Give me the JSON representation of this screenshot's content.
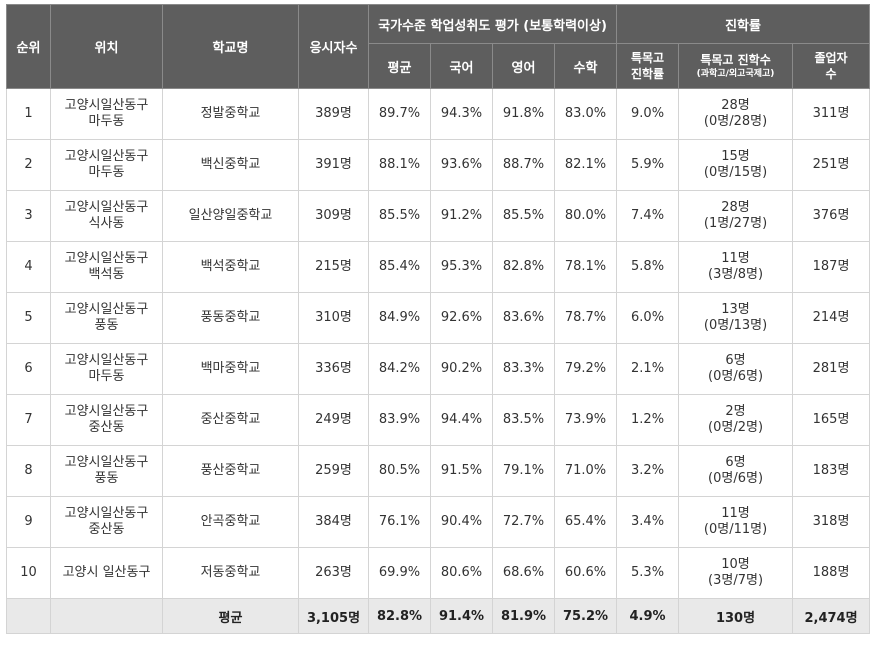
{
  "headers": {
    "rank": "순위",
    "location": "위치",
    "school": "학교명",
    "examinees": "응시자수",
    "national_group": "국가수준 학업성취도 평가 (보통학력이상)",
    "advancement_group": "진학률",
    "avg": "평균",
    "korean": "국어",
    "english": "영어",
    "math": "수학",
    "special_rate_line1": "특목고",
    "special_rate_line2": "진학률",
    "special_count": "특목고 진학수",
    "special_count_sub": "(과학고/외고국제고)",
    "graduates_line1": "졸업자",
    "graduates_line2": "수"
  },
  "rows": [
    {
      "rank": "1",
      "loc1": "고양시일산동구",
      "loc2": "마두동",
      "school": "정발중학교",
      "examinees": "389명",
      "avg": "89.7%",
      "korean": "94.3%",
      "english": "91.8%",
      "math": "83.0%",
      "special_rate": "9.0%",
      "special_count": "28명",
      "special_detail": "(0명/28명)",
      "graduates": "311명"
    },
    {
      "rank": "2",
      "loc1": "고양시일산동구",
      "loc2": "마두동",
      "school": "백신중학교",
      "examinees": "391명",
      "avg": "88.1%",
      "korean": "93.6%",
      "english": "88.7%",
      "math": "82.1%",
      "special_rate": "5.9%",
      "special_count": "15명",
      "special_detail": "(0명/15명)",
      "graduates": "251명"
    },
    {
      "rank": "3",
      "loc1": "고양시일산동구",
      "loc2": "식사동",
      "school": "일산양일중학교",
      "examinees": "309명",
      "avg": "85.5%",
      "korean": "91.2%",
      "english": "85.5%",
      "math": "80.0%",
      "special_rate": "7.4%",
      "special_count": "28명",
      "special_detail": "(1명/27명)",
      "graduates": "376명"
    },
    {
      "rank": "4",
      "loc1": "고양시일산동구",
      "loc2": "백석동",
      "school": "백석중학교",
      "examinees": "215명",
      "avg": "85.4%",
      "korean": "95.3%",
      "english": "82.8%",
      "math": "78.1%",
      "special_rate": "5.8%",
      "special_count": "11명",
      "special_detail": "(3명/8명)",
      "graduates": "187명"
    },
    {
      "rank": "5",
      "loc1": "고양시일산동구",
      "loc2": "풍동",
      "school": "풍동중학교",
      "examinees": "310명",
      "avg": "84.9%",
      "korean": "92.6%",
      "english": "83.6%",
      "math": "78.7%",
      "special_rate": "6.0%",
      "special_count": "13명",
      "special_detail": "(0명/13명)",
      "graduates": "214명"
    },
    {
      "rank": "6",
      "loc1": "고양시일산동구",
      "loc2": "마두동",
      "school": "백마중학교",
      "examinees": "336명",
      "avg": "84.2%",
      "korean": "90.2%",
      "english": "83.3%",
      "math": "79.2%",
      "special_rate": "2.1%",
      "special_count": "6명",
      "special_detail": "(0명/6명)",
      "graduates": "281명"
    },
    {
      "rank": "7",
      "loc1": "고양시일산동구",
      "loc2": "중산동",
      "school": "중산중학교",
      "examinees": "249명",
      "avg": "83.9%",
      "korean": "94.4%",
      "english": "83.5%",
      "math": "73.9%",
      "special_rate": "1.2%",
      "special_count": "2명",
      "special_detail": "(0명/2명)",
      "graduates": "165명"
    },
    {
      "rank": "8",
      "loc1": "고양시일산동구",
      "loc2": "풍동",
      "school": "풍산중학교",
      "examinees": "259명",
      "avg": "80.5%",
      "korean": "91.5%",
      "english": "79.1%",
      "math": "71.0%",
      "special_rate": "3.2%",
      "special_count": "6명",
      "special_detail": "(0명/6명)",
      "graduates": "183명"
    },
    {
      "rank": "9",
      "loc1": "고양시일산동구",
      "loc2": "중산동",
      "school": "안곡중학교",
      "examinees": "384명",
      "avg": "76.1%",
      "korean": "90.4%",
      "english": "72.7%",
      "math": "65.4%",
      "special_rate": "3.4%",
      "special_count": "11명",
      "special_detail": "(0명/11명)",
      "graduates": "318명"
    },
    {
      "rank": "10",
      "loc1": "고양시 일산동구",
      "loc2": "",
      "school": "저동중학교",
      "examinees": "263명",
      "avg": "69.9%",
      "korean": "80.6%",
      "english": "68.6%",
      "math": "60.6%",
      "special_rate": "5.3%",
      "special_count": "10명",
      "special_detail": "(3명/7명)",
      "graduates": "188명"
    }
  ],
  "footer": {
    "label": "평균",
    "examinees": "3,105명",
    "avg": "82.8%",
    "korean": "91.4%",
    "english": "81.9%",
    "math": "75.2%",
    "special_rate": "4.9%",
    "special_count": "130명",
    "graduates": "2,474명"
  }
}
